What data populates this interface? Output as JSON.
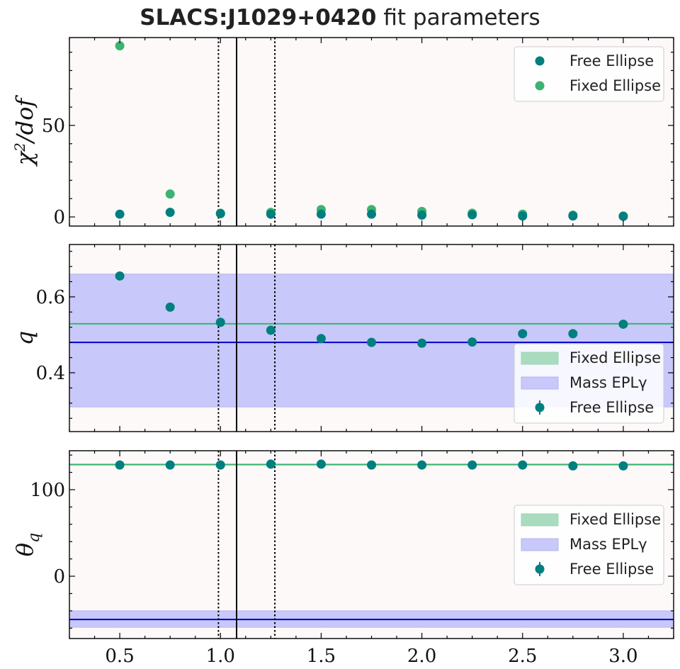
{
  "figure": {
    "title_bold": "SLACS:J1029+0420",
    "title_rest": " fit parameters"
  },
  "colors": {
    "free": "#007f7f",
    "fixed": "#3cb371",
    "mass": "#0000cd",
    "mass_band": "#c8c8fa",
    "fixed_band": "#a9dcbf",
    "panel_bg": "#fdf9f8"
  },
  "chart_data": [
    {
      "type": "scatter",
      "ylabel": "χ²/dof",
      "xlim": [
        0.25,
        3.25
      ],
      "ylim": [
        -5,
        98
      ],
      "yticks": [
        0,
        50
      ],
      "ytick_labels": [
        "0",
        "50"
      ],
      "xtick_labels_shown": false,
      "vlines_solid": [
        1.08
      ],
      "vlines_dotted": [
        0.99,
        1.27
      ],
      "series": [
        {
          "name": "Free Ellipse",
          "x": [
            0.5,
            0.75,
            1.0,
            1.25,
            1.5,
            1.75,
            2.0,
            2.25,
            2.5,
            2.75,
            3.0
          ],
          "y": [
            1.5,
            2.5,
            1.8,
            1.5,
            1.5,
            1.5,
            1.0,
            1.2,
            0.5,
            0.5,
            0.3
          ]
        },
        {
          "name": "Fixed Ellipse",
          "x": [
            0.5,
            0.75,
            1.0,
            1.25,
            1.5,
            1.75,
            2.0,
            2.25,
            2.5,
            2.75,
            3.0
          ],
          "y": [
            93.5,
            12.5,
            2.0,
            2.5,
            4.0,
            4.0,
            3.0,
            2.0,
            1.5,
            1.0,
            0.5
          ]
        }
      ],
      "legend": {
        "position": "upper right",
        "entries": [
          "Free Ellipse",
          "Fixed Ellipse"
        ]
      }
    },
    {
      "type": "scatter",
      "ylabel": "q",
      "xlim": [
        0.25,
        3.25
      ],
      "ylim": [
        0.245,
        0.738
      ],
      "yticks": [
        0.4,
        0.6
      ],
      "ytick_labels": [
        "0.4",
        "0.6"
      ],
      "xtick_labels_shown": false,
      "vlines_solid": [
        1.08
      ],
      "vlines_dotted": [
        0.99,
        1.27
      ],
      "bands": [
        {
          "name": "Mass EPLγ",
          "lo": 0.31,
          "hi": 0.66,
          "line": 0.48
        },
        {
          "name": "Fixed Ellipse",
          "lo": 0.527,
          "hi": 0.531,
          "line": 0.529
        }
      ],
      "series": [
        {
          "name": "Free Ellipse",
          "x": [
            0.5,
            0.75,
            1.0,
            1.25,
            1.5,
            1.75,
            2.0,
            2.25,
            2.5,
            2.75,
            3.0
          ],
          "y": [
            0.655,
            0.573,
            0.533,
            0.512,
            0.49,
            0.48,
            0.478,
            0.481,
            0.503,
            0.503,
            0.528
          ]
        }
      ],
      "legend": {
        "position": "lower right",
        "entries": [
          "Fixed Ellipse",
          "Mass EPLγ",
          "Free Ellipse"
        ]
      }
    },
    {
      "type": "scatter",
      "ylabel": "θ_q",
      "xlim": [
        0.25,
        3.25
      ],
      "ylim": [
        -72,
        145
      ],
      "yticks": [
        0,
        100
      ],
      "ytick_labels": [
        "0",
        "100"
      ],
      "xticks": [
        0.5,
        1.0,
        1.5,
        2.0,
        2.5,
        3.0
      ],
      "xtick_labels": [
        "0.5",
        "1.0",
        "1.5",
        "2.0",
        "2.5",
        "3.0"
      ],
      "xtick_labels_shown": true,
      "vlines_solid": [
        1.08
      ],
      "vlines_dotted": [
        0.99,
        1.27
      ],
      "bands": [
        {
          "name": "Mass EPLγ",
          "lo": -59,
          "hi": -40,
          "line": -50
        },
        {
          "name": "Fixed Ellipse",
          "lo": 128,
          "hi": 130,
          "line": 129
        }
      ],
      "series": [
        {
          "name": "Free Ellipse",
          "x": [
            0.5,
            0.75,
            1.0,
            1.25,
            1.5,
            1.75,
            2.0,
            2.25,
            2.5,
            2.75,
            3.0
          ],
          "y": [
            128.5,
            128.5,
            128.5,
            129.5,
            129.5,
            128.5,
            128.5,
            128.5,
            128.5,
            127.5,
            127.5
          ]
        }
      ],
      "legend": {
        "position": "center right",
        "entries": [
          "Fixed Ellipse",
          "Mass EPLγ",
          "Free Ellipse"
        ]
      }
    }
  ]
}
